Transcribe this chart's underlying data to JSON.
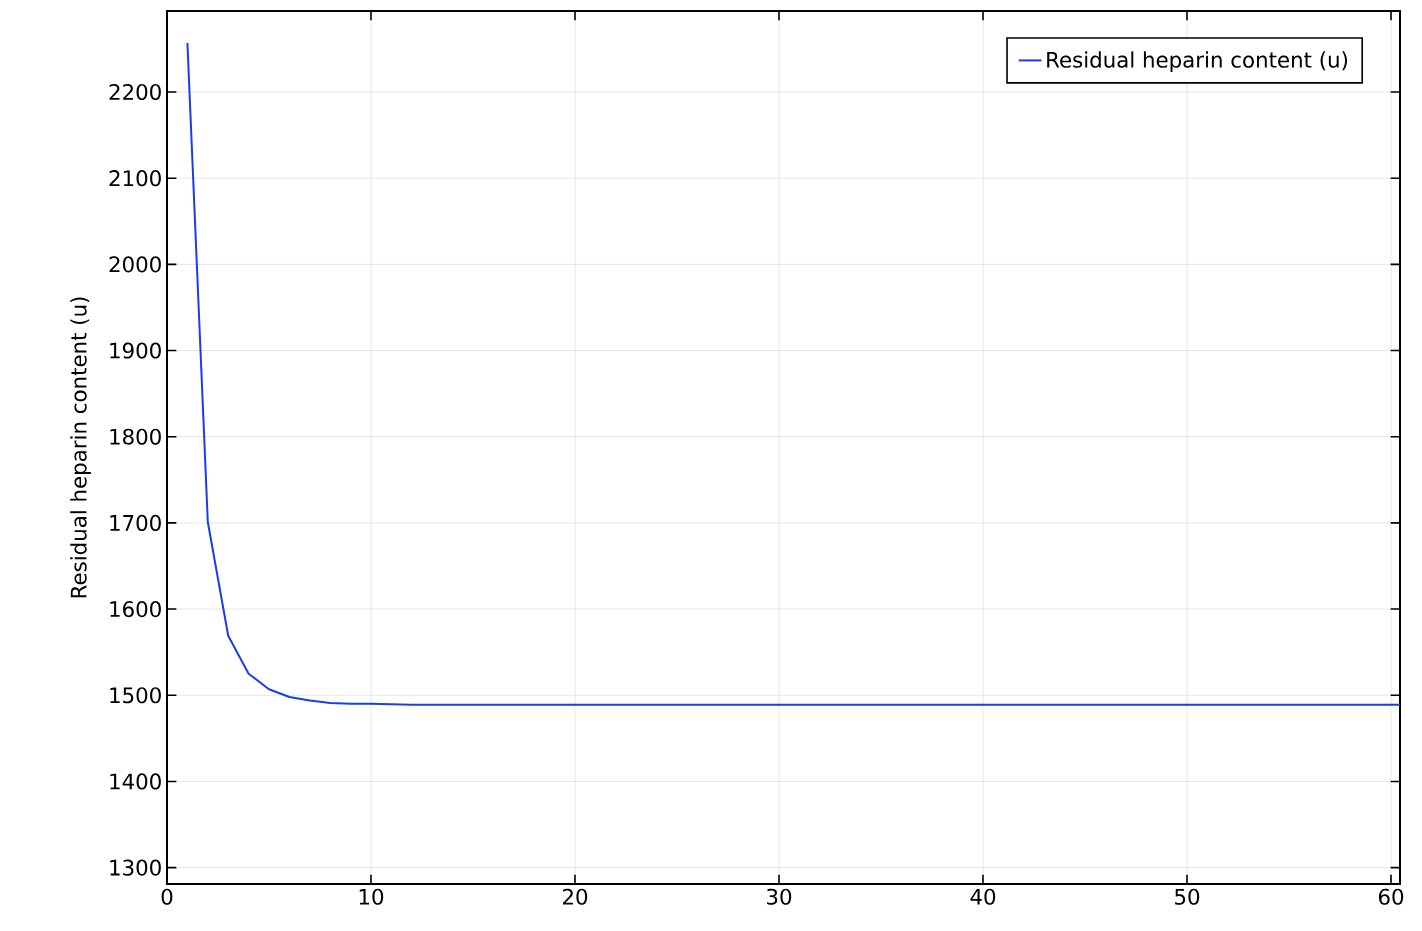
{
  "chart_data": {
    "type": "line",
    "ylabel": "Residual heparin content (u)",
    "x": [
      1,
      2,
      3,
      4,
      5,
      6,
      7,
      8,
      9,
      10,
      12,
      15,
      20,
      25,
      30,
      40,
      50,
      60.44
    ],
    "series": [
      {
        "name": "Residual heparin content (u)",
        "color": "#1a3cf0",
        "values": [
          2257,
          1701,
          1569,
          1525,
          1507,
          1498,
          1494,
          1491,
          1490,
          1490,
          1489,
          1489,
          1489,
          1489,
          1489,
          1489,
          1489,
          1489
        ]
      }
    ],
    "xlim": [
      0,
      60.44
    ],
    "ylim": [
      1281,
      2294
    ],
    "xticks": [
      0,
      10,
      20,
      30,
      40,
      50,
      60
    ],
    "yticks": [
      1300,
      1400,
      1500,
      1600,
      1700,
      1800,
      1900,
      2000,
      2100,
      2200
    ],
    "grid": true,
    "legend": "top right",
    "marker": "none",
    "line_style": "solid"
  }
}
